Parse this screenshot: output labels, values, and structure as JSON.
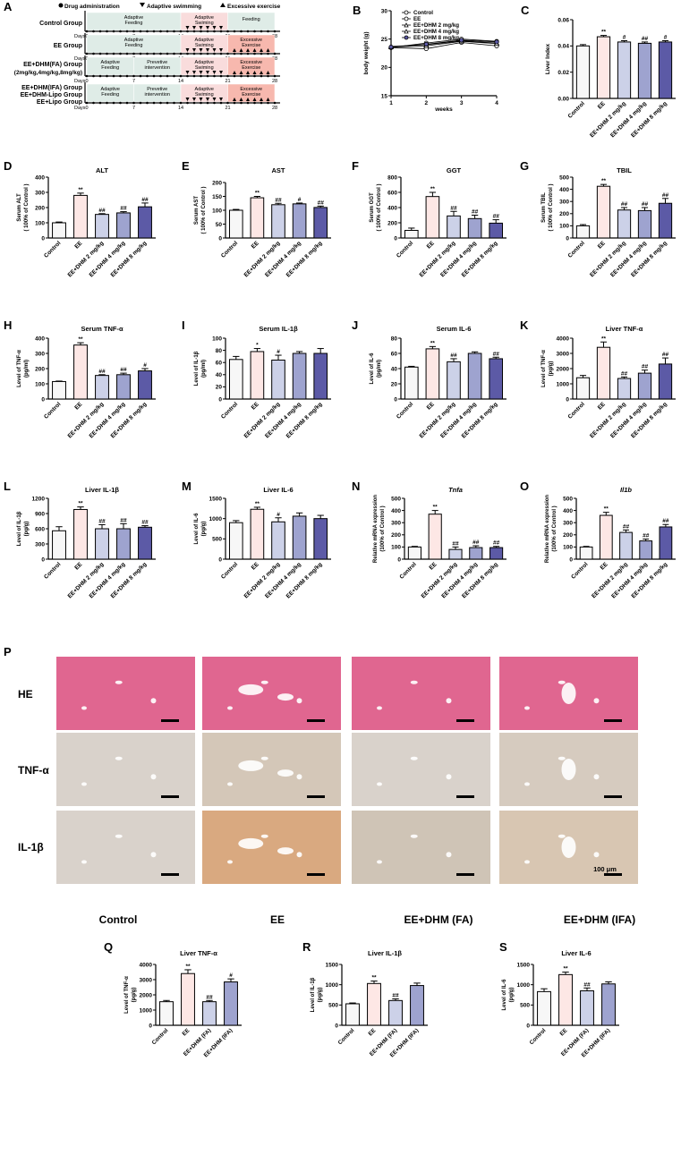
{
  "colors": {
    "control": "#f7f7f7",
    "ee": "#fde7e5",
    "dhm2": "#ccd1e8",
    "dhm4": "#9ea3cf",
    "dhm8": "#5c5aa6",
    "fa": "#ccd1e8",
    "ifa": "#9ea3cf",
    "green_band": "#dfece7",
    "pink_band": "#f9dcdc",
    "salmon_band": "#f7b8ae",
    "he_tissue": "#e06690",
    "ihc_tissue": "#d9d2cb",
    "il1b_ee_tissue": "#d9a980"
  },
  "panel_a": {
    "letter": "A",
    "legend": [
      "Drug administration",
      "Adaptive swimming",
      "Excessive exercise"
    ],
    "days_label": "Days",
    "ticks": [
      "0",
      "7",
      "14",
      "21",
      "28"
    ],
    "rows": [
      {
        "group": "Control Group",
        "bands": [
          "Adaptive Feeding",
          "Adaptive Swiming",
          "Feeding"
        ]
      },
      {
        "group": "EE Group",
        "bands": [
          "Adaptive Feeding",
          "Adaptive Swiming",
          "Excessive Exercise"
        ]
      },
      {
        "group": "EE+DHM(FA) Group",
        "group2": "(2mg/kg,4mg/kg,8mg/kg)",
        "bands": [
          "Adaptive Feeding",
          "Prevetive intervention",
          "Adaptive Swiming",
          "Excessive Exercise"
        ]
      },
      {
        "group": "EE+DHM(IFA) Group",
        "group2": "EE+DHM-Lipo Group",
        "group3": "EE+Lipo Group",
        "bands": [
          "Adaptive Feeding",
          "Prevetive intervention",
          "Adaptive Swiming",
          "Excessive Exercise"
        ]
      }
    ]
  },
  "chart_data": [
    {
      "id": "B",
      "type": "line",
      "title": "",
      "xlabel": "weeks",
      "ylabel": "body weight (g)",
      "x": [
        1,
        2,
        3,
        4
      ],
      "xticks": [
        "1",
        "2",
        "3",
        "4"
      ],
      "yticks": [
        "15",
        "20",
        "25",
        "30"
      ],
      "ylim": [
        15,
        30
      ],
      "series": [
        {
          "name": "Control",
          "values": [
            23.5,
            24.3,
            25.0,
            24.6
          ]
        },
        {
          "name": "EE",
          "values": [
            23.5,
            23.3,
            24.4,
            23.8
          ]
        },
        {
          "name": "EE+DHM 2 mg/kg",
          "values": [
            23.7,
            24.0,
            24.7,
            24.3
          ]
        },
        {
          "name": "EE+DHM 4 mg/kg",
          "values": [
            23.6,
            23.8,
            24.6,
            24.2
          ]
        },
        {
          "name": "EE+DHM 8 mg/kg",
          "values": [
            23.6,
            24.1,
            24.8,
            24.5
          ]
        }
      ]
    },
    {
      "id": "C",
      "type": "bar",
      "title": "",
      "ylabel": "Liver Index",
      "ylim": [
        0,
        0.06
      ],
      "yticks": [
        "0.00",
        "0.02",
        "0.04",
        "0.06"
      ],
      "categories": [
        "Control",
        "EE",
        "EE+DHM 2 mg/kg",
        "EE+DHM 4 mg/kg",
        "EE+DHM 8 mg/kg"
      ],
      "values": [
        0.04,
        0.047,
        0.043,
        0.042,
        0.043
      ],
      "errors": [
        0.001,
        0.001,
        0.001,
        0.001,
        0.001
      ],
      "marks": [
        "",
        "**",
        "#",
        "##",
        "#"
      ],
      "colors": [
        "control",
        "ee",
        "dhm2",
        "dhm4",
        "dhm8"
      ]
    },
    {
      "id": "D",
      "type": "bar",
      "title": "ALT",
      "ylabel": "Serum ALT\n( 100% of Control )",
      "ylim": [
        0,
        400
      ],
      "yticks": [
        "0",
        "100",
        "200",
        "300",
        "400"
      ],
      "categories": [
        "Control",
        "EE",
        "EE+DHM 2 mg/kg",
        "EE+DHM 4 mg/kg",
        "EE+DHM 8 mg/kg"
      ],
      "values": [
        100,
        280,
        155,
        165,
        205
      ],
      "errors": [
        5,
        15,
        5,
        8,
        25
      ],
      "marks": [
        "",
        "**",
        "##",
        "##",
        "##"
      ],
      "colors": [
        "control",
        "ee",
        "dhm2",
        "dhm4",
        "dhm8"
      ]
    },
    {
      "id": "E",
      "type": "bar",
      "title": "AST",
      "ylabel": "Serum AST\n( 100% of Control )",
      "ylim": [
        0,
        200
      ],
      "yticks": [
        "0",
        "50",
        "100",
        "150",
        "200"
      ],
      "categories": [
        "Control",
        "EE",
        "EE+DHM 2 mg/kg",
        "EE+DHM 4 mg/kg",
        "EE+DHM 8 mg/kg"
      ],
      "values": [
        100,
        145,
        120,
        123,
        110
      ],
      "errors": [
        3,
        5,
        5,
        3,
        5
      ],
      "marks": [
        "",
        "**",
        "##",
        "#",
        "##"
      ],
      "colors": [
        "control",
        "ee",
        "dhm2",
        "dhm4",
        "dhm8"
      ]
    },
    {
      "id": "F",
      "type": "bar",
      "title": "GGT",
      "ylabel": "Serum GGT\n( 100% of Control )",
      "ylim": [
        0,
        800
      ],
      "yticks": [
        "0",
        "200",
        "400",
        "600",
        "800"
      ],
      "categories": [
        "Control",
        "EE",
        "EE+DHM 2 mg/kg",
        "EE+DHM 4 mg/kg",
        "EE+DHM 8 mg/kg"
      ],
      "values": [
        100,
        545,
        290,
        255,
        195
      ],
      "errors": [
        30,
        55,
        60,
        45,
        45
      ],
      "marks": [
        "",
        "**",
        "##",
        "##",
        "##"
      ],
      "colors": [
        "control",
        "ee",
        "dhm2",
        "dhm4",
        "dhm8"
      ]
    },
    {
      "id": "G",
      "type": "bar",
      "title": "TBIL",
      "ylabel": "Serum TBIL\n( 100% of Control )",
      "ylim": [
        0,
        500
      ],
      "yticks": [
        "0",
        "100",
        "200",
        "300",
        "400",
        "500"
      ],
      "categories": [
        "Control",
        "EE",
        "EE+DHM 2 mg/kg",
        "EE+DHM 4 mg/kg",
        "EE+DHM 8 mg/kg"
      ],
      "values": [
        100,
        425,
        230,
        225,
        285
      ],
      "errors": [
        10,
        15,
        20,
        25,
        40
      ],
      "marks": [
        "",
        "**",
        "##",
        "##",
        "##"
      ],
      "colors": [
        "control",
        "ee",
        "dhm2",
        "dhm4",
        "dhm8"
      ]
    },
    {
      "id": "H",
      "type": "bar",
      "title": "Serum TNF-α",
      "ylabel": "Level of TNF-α\n(pg/ml)",
      "ylim": [
        0,
        400
      ],
      "yticks": [
        "0",
        "100",
        "200",
        "300",
        "400"
      ],
      "categories": [
        "Control",
        "EE",
        "EE+DHM 2 mg/kg",
        "EE+DHM 4 mg/kg",
        "EE+DHM 8 mg/kg"
      ],
      "values": [
        115,
        355,
        155,
        160,
        185
      ],
      "errors": [
        3,
        15,
        5,
        10,
        15
      ],
      "marks": [
        "",
        "**",
        "##",
        "##",
        "#"
      ],
      "colors": [
        "control",
        "ee",
        "dhm2",
        "dhm4",
        "dhm8"
      ]
    },
    {
      "id": "I",
      "type": "bar",
      "title": "Serum IL-1β",
      "ylabel": "Level of IL-1β\n(pg/ml)",
      "ylim": [
        0,
        100
      ],
      "yticks": [
        "0",
        "20",
        "40",
        "60",
        "80",
        "100"
      ],
      "categories": [
        "Control",
        "EE",
        "EE+DHM 2 mg/kg",
        "EE+DHM 4 mg/kg",
        "EE+DHM 8 mg/kg"
      ],
      "values": [
        65,
        78,
        64,
        75,
        75
      ],
      "errors": [
        5,
        5,
        8,
        3,
        8
      ],
      "marks": [
        "",
        "*",
        "#",
        "",
        ""
      ],
      "colors": [
        "control",
        "ee",
        "dhm2",
        "dhm4",
        "dhm8"
      ]
    },
    {
      "id": "J",
      "type": "bar",
      "title": "Serum IL-6",
      "ylabel": "Level of IL-6\n(pg/ml)",
      "ylim": [
        0,
        80
      ],
      "yticks": [
        "0",
        "20",
        "40",
        "60",
        "80"
      ],
      "categories": [
        "Control",
        "EE",
        "EE+DHM 2 mg/kg",
        "EE+DHM 4 mg/kg",
        "EE+DHM 8 mg/kg"
      ],
      "values": [
        42,
        66,
        49,
        60,
        53
      ],
      "errors": [
        1,
        3,
        4,
        2,
        2
      ],
      "marks": [
        "",
        "**",
        "##",
        "",
        "##"
      ],
      "colors": [
        "control",
        "ee",
        "dhm2",
        "dhm4",
        "dhm8"
      ]
    },
    {
      "id": "K",
      "type": "bar",
      "title": "Liver TNF-α",
      "ylabel": "Level of TNF-α\n(pg/g)",
      "ylim": [
        0,
        4000
      ],
      "yticks": [
        "0",
        "1000",
        "2000",
        "3000",
        "4000"
      ],
      "categories": [
        "Control",
        "EE",
        "EE+DHM 2 mg/kg",
        "EE+DHM 4 mg/kg",
        "EE+DHM 8 mg/kg"
      ],
      "values": [
        1400,
        3400,
        1350,
        1700,
        2300
      ],
      "errors": [
        150,
        350,
        100,
        200,
        400
      ],
      "marks": [
        "",
        "**",
        "##",
        "##",
        "##"
      ],
      "colors": [
        "control",
        "ee",
        "dhm2",
        "dhm4",
        "dhm8"
      ]
    },
    {
      "id": "L",
      "type": "bar",
      "title": "Liver IL-1β",
      "ylabel": "Level of IL-1β\n(pg/g)",
      "ylim": [
        0,
        1200
      ],
      "yticks": [
        "0",
        "300",
        "600",
        "900",
        "1200"
      ],
      "categories": [
        "Control",
        "EE",
        "EE+DHM 2 mg/kg",
        "EE+DHM 4 mg/kg",
        "EE+DHM 8 mg/kg"
      ],
      "values": [
        560,
        980,
        600,
        600,
        630
      ],
      "errors": [
        80,
        50,
        80,
        100,
        30
      ],
      "marks": [
        "",
        "**",
        "##",
        "##",
        "##"
      ],
      "colors": [
        "control",
        "ee",
        "dhm2",
        "dhm4",
        "dhm8"
      ]
    },
    {
      "id": "M",
      "type": "bar",
      "title": "Liver IL-6",
      "ylabel": "Level of IL-6\n(pg/g)",
      "ylim": [
        0,
        1500
      ],
      "yticks": [
        "0",
        "500",
        "1000",
        "1500"
      ],
      "categories": [
        "Control",
        "EE",
        "EE+DHM 2 mg/kg",
        "EE+DHM 4 mg/kg",
        "EE+DHM 8 mg/kg"
      ],
      "values": [
        900,
        1230,
        920,
        1060,
        1000
      ],
      "errors": [
        50,
        50,
        100,
        80,
        80
      ],
      "marks": [
        "",
        "**",
        "#",
        "",
        ""
      ],
      "colors": [
        "control",
        "ee",
        "dhm2",
        "dhm4",
        "dhm8"
      ]
    },
    {
      "id": "N",
      "type": "bar",
      "title": "Tnfa",
      "title_italic": true,
      "ylabel": "Relative mRNA expression\n(100% of Control )",
      "ylim": [
        0,
        500
      ],
      "yticks": [
        "0",
        "100",
        "200",
        "300",
        "400",
        "500"
      ],
      "categories": [
        "Control",
        "EE",
        "EE+DHM 2 mg/kg",
        "EE+DHM 4 mg/kg",
        "EE+DHM 8 mg/kg"
      ],
      "values": [
        100,
        370,
        80,
        95,
        95
      ],
      "errors": [
        5,
        30,
        20,
        15,
        10
      ],
      "marks": [
        "",
        "**",
        "##",
        "##",
        "##"
      ],
      "colors": [
        "control",
        "ee",
        "dhm2",
        "dhm4",
        "dhm8"
      ]
    },
    {
      "id": "O",
      "type": "bar",
      "title": "Il1b",
      "title_italic": true,
      "ylabel": "Relative mRNA expression\n(100% of Control )",
      "ylim": [
        0,
        500
      ],
      "yticks": [
        "0",
        "100",
        "200",
        "300",
        "400",
        "500"
      ],
      "categories": [
        "Control",
        "EE",
        "EE+DHM 2 mg/kg",
        "EE+DHM 4 mg/kg",
        "EE+DHM 8 mg/kg"
      ],
      "values": [
        100,
        360,
        220,
        150,
        265
      ],
      "errors": [
        5,
        25,
        20,
        15,
        20
      ],
      "marks": [
        "",
        "**",
        "##",
        "##",
        "##"
      ],
      "colors": [
        "control",
        "ee",
        "dhm2",
        "dhm4",
        "dhm8"
      ]
    },
    {
      "id": "Q",
      "type": "bar",
      "title": "Liver TNF-α",
      "ylabel": "Level of TNF-α\n(pg/g)",
      "ylim": [
        0,
        4000
      ],
      "yticks": [
        "0",
        "1000",
        "2000",
        "3000",
        "4000"
      ],
      "categories": [
        "Control",
        "EE",
        "EE+DHM (FA)",
        "EE+DHM (IFA)"
      ],
      "values": [
        1550,
        3400,
        1550,
        2850
      ],
      "errors": [
        80,
        250,
        80,
        200
      ],
      "marks": [
        "",
        "**",
        "##",
        "#"
      ],
      "colors": [
        "control",
        "ee",
        "fa",
        "ifa"
      ]
    },
    {
      "id": "R",
      "type": "bar",
      "title": "Liver IL-1β",
      "ylabel": "Level of IL-1β\n(pg/g)",
      "ylim": [
        0,
        1500
      ],
      "yticks": [
        "0",
        "500",
        "1000",
        "1500"
      ],
      "categories": [
        "Control",
        "EE",
        "EE+DHM (FA)",
        "EE+DHM (IFA)"
      ],
      "values": [
        530,
        1030,
        610,
        980
      ],
      "errors": [
        20,
        60,
        40,
        60
      ],
      "marks": [
        "",
        "**",
        "##",
        ""
      ],
      "colors": [
        "control",
        "ee",
        "fa",
        "ifa"
      ]
    },
    {
      "id": "S",
      "type": "bar",
      "title": "Liver IL-6",
      "ylabel": "Level of IL-6\n(pg/g)",
      "ylim": [
        0,
        1500
      ],
      "yticks": [
        "0",
        "500",
        "1000",
        "1500"
      ],
      "categories": [
        "Control",
        "EE",
        "EE+DHM (FA)",
        "EE+DHM (IFA)"
      ],
      "values": [
        830,
        1250,
        850,
        1020
      ],
      "errors": [
        70,
        60,
        70,
        50
      ],
      "marks": [
        "",
        "**",
        "##",
        ""
      ],
      "colors": [
        "control",
        "ee",
        "fa",
        "ifa"
      ]
    }
  ],
  "panel_p": {
    "letter": "P",
    "rows": [
      "HE",
      "TNF-α",
      "IL-1β"
    ],
    "columns": [
      "Control",
      "EE",
      "EE+DHM (FA)",
      "EE+DHM (IFA)"
    ],
    "scale_bar": "100 μm"
  }
}
